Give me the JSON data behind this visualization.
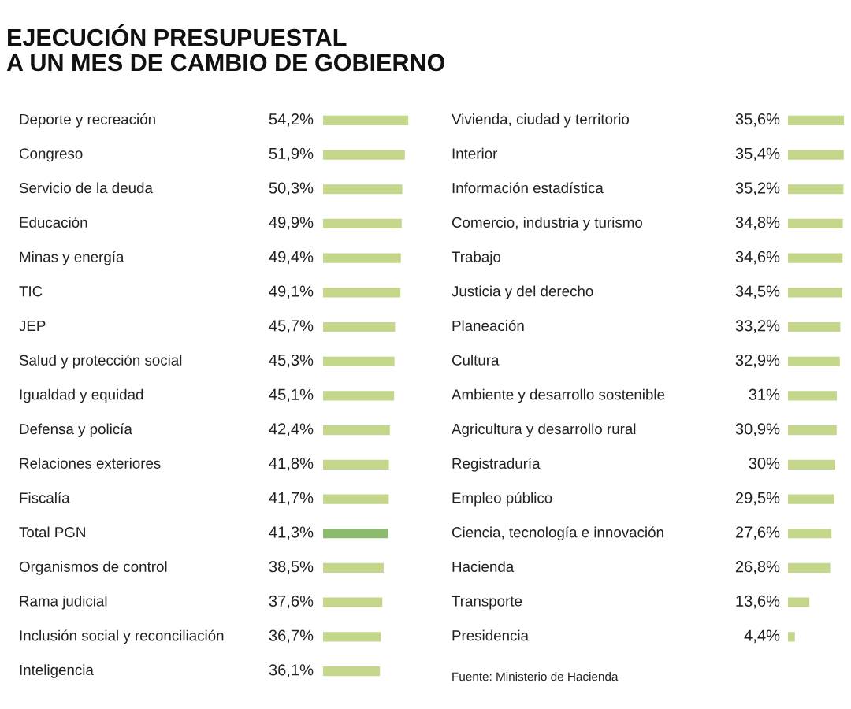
{
  "chart_data": [
    {
      "type": "bar",
      "orientation": "horizontal",
      "title": "EJECUCIÓN PRESUPUESTAL\nA UN MES DE CAMBIO DE GOBIERNO",
      "categories": [
        "Deporte y recreación",
        "Congreso",
        "Servicio de la deuda",
        "Educación",
        "Minas y energía",
        "TIC",
        "JEP",
        "Salud y protección social",
        "Igualdad y equidad",
        "Defensa y policía",
        "Relaciones exteriores",
        "Fiscalía",
        "Total PGN",
        "Organismos de control",
        "Rama judicial",
        "Inclusión social y reconciliación",
        "Inteligencia"
      ],
      "values": [
        54.2,
        51.9,
        50.3,
        49.9,
        49.4,
        49.1,
        45.7,
        45.3,
        45.1,
        42.4,
        41.8,
        41.7,
        41.3,
        38.5,
        37.6,
        36.7,
        36.1
      ],
      "value_labels": [
        "54,2%",
        "51,9%",
        "50,3%",
        "49,9%",
        "49,4%",
        "49,1%",
        "45,7%",
        "45,3%",
        "45,1%",
        "42,4%",
        "41,8%",
        "41,7%",
        "41,3%",
        "38,5%",
        "37,6%",
        "36,7%",
        "36,1%"
      ],
      "colors": [
        "#c3d68a",
        "#c3d68a",
        "#c3d68a",
        "#c3d68a",
        "#c3d68a",
        "#c3d68a",
        "#c3d68a",
        "#c3d68a",
        "#c3d68a",
        "#c3d68a",
        "#c3d68a",
        "#c3d68a",
        "#8dbb6e",
        "#c3d68a",
        "#c3d68a",
        "#c3d68a",
        "#c3d68a"
      ]
    },
    {
      "type": "bar",
      "orientation": "horizontal",
      "categories": [
        "Vivienda, ciudad y territorio",
        "Interior",
        "Información estadística",
        "Comercio, industria y turismo",
        "Trabajo",
        "Justicia y del derecho",
        "Planeación",
        "Cultura",
        "Ambiente y desarrollo sostenible",
        "Agricultura y desarrollo rural",
        "Registraduría",
        "Empleo público",
        "Ciencia, tecnología e innovación",
        "Hacienda",
        "Transporte",
        "Presidencia"
      ],
      "values": [
        35.6,
        35.4,
        35.2,
        34.8,
        34.6,
        34.5,
        33.2,
        32.9,
        31,
        30.9,
        30,
        29.5,
        27.6,
        26.8,
        13.6,
        4.4
      ],
      "value_labels": [
        "35,6%",
        "35,4%",
        "35,2%",
        "34,8%",
        "34,6%",
        "34,5%",
        "33,2%",
        "32,9%",
        "31%",
        "30,9%",
        "30%",
        "29,5%",
        "27,6%",
        "26,8%",
        "13,6%",
        "4,4%"
      ],
      "colors": [
        "#c3d68a",
        "#c3d68a",
        "#c3d68a",
        "#c3d68a",
        "#c3d68a",
        "#c3d68a",
        "#c3d68a",
        "#c3d68a",
        "#c3d68a",
        "#c3d68a",
        "#c3d68a",
        "#c3d68a",
        "#c3d68a",
        "#c3d68a",
        "#c3d68a",
        "#c3d68a"
      ],
      "annotations": [
        "Fuente: Ministerio de Hacienda"
      ]
    }
  ]
}
